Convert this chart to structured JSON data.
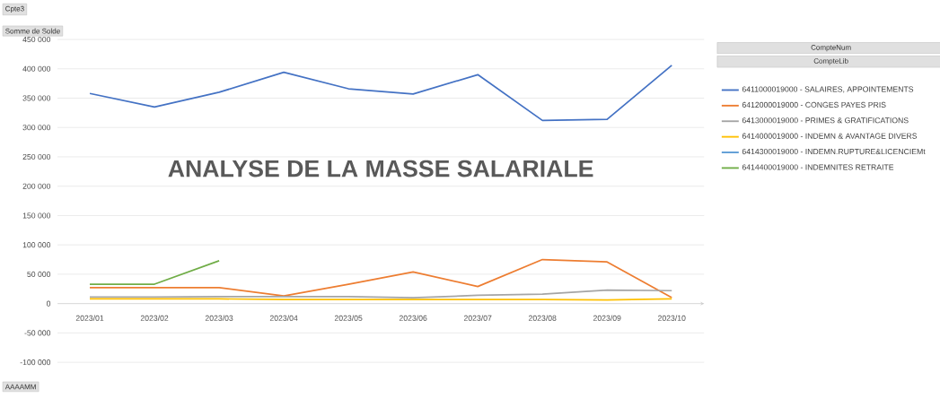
{
  "chart_data": {
    "type": "line",
    "title": "ANALYSE DE LA MASSE SALARIALE",
    "ylabel": "Somme de Solde",
    "xlabel": "AAAAMM",
    "legend_title": "CompteNum",
    "annotations": [
      "Cpte3",
      "CompteLib"
    ],
    "categories": [
      "2023/01",
      "2023/02",
      "2023/03",
      "2023/04",
      "2023/05",
      "2023/06",
      "2023/07",
      "2023/08",
      "2023/09",
      "2023/10"
    ],
    "series": [
      {
        "name": "6411000019000 - SALAIRES, APPOINTEMENTS",
        "color": "#4472c4",
        "values": [
          358000,
          335000,
          360000,
          394000,
          366000,
          357000,
          390000,
          312000,
          314000,
          406000
        ]
      },
      {
        "name": "6412000019000 - CONGES PAYES PRIS",
        "color": "#ed7d31",
        "values": [
          27000,
          27000,
          27000,
          13000,
          33000,
          54000,
          29000,
          75000,
          71000,
          10000
        ]
      },
      {
        "name": "6413000019000 - PRIMES & GRATIFICATIONS",
        "color": "#a5a5a5",
        "values": [
          11000,
          11000,
          12000,
          12000,
          12000,
          10000,
          14000,
          16000,
          23000,
          22000
        ]
      },
      {
        "name": "6414000019000 - INDEMN & AVANTAGE DIVERS",
        "color": "#ffc000",
        "values": [
          8000,
          8000,
          8000,
          7000,
          7000,
          7000,
          7000,
          7000,
          6000,
          8000
        ]
      },
      {
        "name": "6414300019000 - INDEMN.RUPTURE&LICENCIEMt",
        "color": "#5b9bd5",
        "values": [
          null,
          null,
          null,
          null,
          null,
          null,
          null,
          null,
          null,
          null
        ]
      },
      {
        "name": "6414400019000 - INDEMNITES RETRAITE",
        "color": "#70ad47",
        "values": [
          33000,
          33000,
          73000,
          null,
          null,
          null,
          null,
          null,
          null,
          null
        ]
      }
    ],
    "ylim": [
      -100000,
      450000
    ],
    "yticks": [
      {
        "value": -100000,
        "label": "-100 000"
      },
      {
        "value": -50000,
        "label": "-50 000"
      },
      0,
      {
        "value": 50000,
        "label": "50 000"
      },
      {
        "value": 100000,
        "label": "100 000"
      },
      {
        "value": 150000,
        "label": "150 000"
      },
      {
        "value": 200000,
        "label": "200 000"
      },
      {
        "value": 250000,
        "label": "250 000"
      },
      {
        "value": 300000,
        "label": "300 000"
      },
      {
        "value": 350000,
        "label": "350 000"
      },
      {
        "value": 400000,
        "label": "400 000"
      },
      {
        "value": 450000,
        "label": "450 000"
      }
    ],
    "grid": "y",
    "legend": "right",
    "marker": "none",
    "line_style": "solid"
  }
}
